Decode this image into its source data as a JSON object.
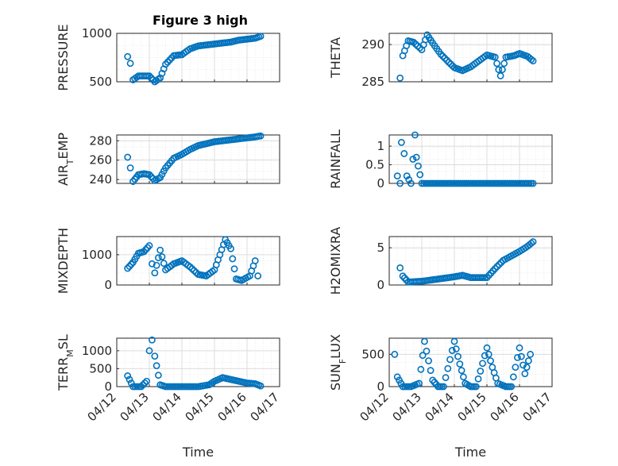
{
  "figure_title": "Figure 3 high",
  "marker_color": "#0072BD",
  "chart_data": [
    {
      "type": "scatter",
      "title": "Figure 3 high",
      "ylabel": "PRESSURE",
      "xlabel": "",
      "ylim": [
        500,
        1000
      ],
      "yticks": [
        "1000",
        "500"
      ],
      "grid": true,
      "x": [
        "04/12 08:00",
        "04/12 10:00",
        "04/12 12:00",
        "04/12 16:00",
        "04/12 20:00",
        "04/13 00:00",
        "04/13 04:00",
        "04/13 08:00",
        "04/13 12:00",
        "04/13 18:00",
        "04/14 00:00",
        "04/14 06:00",
        "04/14 12:00",
        "04/14 18:00",
        "04/15 00:00",
        "04/15 06:00",
        "04/15 12:00",
        "04/15 18:00",
        "04/16 00:00",
        "04/16 06:00",
        "04/16 10:00"
      ],
      "values": [
        760,
        690,
        520,
        560,
        560,
        560,
        500,
        540,
        680,
        770,
        780,
        840,
        870,
        880,
        890,
        900,
        910,
        930,
        940,
        950,
        970
      ]
    },
    {
      "type": "scatter",
      "title": "",
      "ylabel": "THETA",
      "xlabel": "",
      "ylim": [
        285,
        291.5
      ],
      "yticks": [
        "290",
        "285"
      ],
      "grid": true,
      "x": [
        "04/12 08:00",
        "04/12 10:00",
        "04/12 14:00",
        "04/12 18:00",
        "04/13 00:00",
        "04/13 04:00",
        "04/13 08:00",
        "04/13 14:00",
        "04/13 20:00",
        "04/14 00:00",
        "04/14 06:00",
        "04/14 12:00",
        "04/14 18:00",
        "04/15 00:00",
        "04/15 06:00",
        "04/15 10:00",
        "04/15 14:00",
        "04/15 20:00",
        "04/16 00:00",
        "04/16 06:00",
        "04/16 10:00"
      ],
      "values": [
        285.5,
        288.5,
        290.5,
        290.3,
        289.3,
        291.3,
        290.2,
        288.7,
        287.6,
        286.9,
        286.5,
        287.0,
        287.8,
        288.6,
        288.3,
        285.8,
        288.3,
        288.5,
        288.8,
        288.4,
        287.8
      ]
    },
    {
      "type": "scatter",
      "title": "",
      "ylabel": "AIR_TEMP",
      "xlabel": "",
      "ylim": [
        236,
        286
      ],
      "yticks": [
        "280",
        "260",
        "240"
      ],
      "grid": true,
      "x": [
        "04/12 08:00",
        "04/12 10:00",
        "04/12 12:00",
        "04/12 16:00",
        "04/12 20:00",
        "04/13 00:00",
        "04/13 04:00",
        "04/13 08:00",
        "04/13 12:00",
        "04/13 18:00",
        "04/14 00:00",
        "04/14 06:00",
        "04/14 12:00",
        "04/14 18:00",
        "04/15 00:00",
        "04/15 06:00",
        "04/15 12:00",
        "04/15 18:00",
        "04/16 00:00",
        "04/16 06:00",
        "04/16 10:00"
      ],
      "values": [
        263,
        252,
        238,
        245,
        246,
        245,
        239,
        242,
        252,
        262,
        266,
        271,
        275,
        277,
        279,
        280,
        281,
        282,
        283,
        284,
        285
      ]
    },
    {
      "type": "scatter",
      "title": "",
      "ylabel": "RAINFALL",
      "xlabel": "",
      "ylim": [
        0,
        1.3
      ],
      "yticks": [
        "1",
        "0.5",
        "0"
      ],
      "grid": true,
      "x": [
        "04/12 06:00",
        "04/12 08:00",
        "04/12 09:00",
        "04/12 11:00",
        "04/12 13:00",
        "04/12 16:00",
        "04/12 19:00",
        "04/12 20:00",
        "04/13 00:00",
        "04/13 12:00",
        "04/14 00:00",
        "04/14 12:00",
        "04/15 00:00",
        "04/15 12:00",
        "04/16 00:00",
        "04/16 10:00"
      ],
      "values": [
        0.2,
        0.0,
        1.1,
        0.8,
        0.2,
        0.0,
        1.3,
        0.7,
        0.0,
        0.0,
        0.0,
        0.0,
        0.0,
        0.0,
        0.0,
        0.0
      ]
    },
    {
      "type": "scatter",
      "title": "",
      "ylabel": "MIXDEPTH",
      "xlabel": "",
      "ylim": [
        0,
        1600
      ],
      "yticks": [
        "1000",
        "0"
      ],
      "grid": true,
      "x": [
        "04/12 08:00",
        "04/12 12:00",
        "04/12 16:00",
        "04/12 20:00",
        "04/13 00:00",
        "04/13 02:00",
        "04/13 04:00",
        "04/13 08:00",
        "04/13 12:00",
        "04/13 18:00",
        "04/14 00:00",
        "04/14 06:00",
        "04/14 12:00",
        "04/14 18:00",
        "04/15 00:00",
        "04/15 04:00",
        "04/15 08:00",
        "04/15 12:00",
        "04/15 16:00",
        "04/15 20:00",
        "04/16 02:00",
        "04/16 06:00",
        "04/16 08:00"
      ],
      "values": [
        550,
        750,
        1050,
        1100,
        1300,
        700,
        400,
        1150,
        500,
        700,
        800,
        600,
        350,
        300,
        500,
        1000,
        1500,
        1200,
        200,
        150,
        300,
        800,
        300
      ]
    },
    {
      "type": "scatter",
      "title": "",
      "ylabel": "H2OMIXRA",
      "xlabel": "",
      "ylim": [
        0,
        6.5
      ],
      "yticks": [
        "5",
        "0"
      ],
      "grid": true,
      "x": [
        "04/12 08:00",
        "04/12 10:00",
        "04/12 14:00",
        "04/13 00:00",
        "04/13 12:00",
        "04/14 00:00",
        "04/14 06:00",
        "04/14 12:00",
        "04/15 00:00",
        "04/15 06:00",
        "04/15 12:00",
        "04/15 18:00",
        "04/16 00:00",
        "04/16 06:00",
        "04/16 10:00"
      ],
      "values": [
        2.3,
        1.2,
        0.4,
        0.5,
        0.8,
        1.1,
        1.3,
        1.0,
        1.0,
        2.2,
        3.3,
        3.9,
        4.5,
        5.2,
        5.8
      ]
    },
    {
      "type": "scatter",
      "title": "",
      "ylabel": "TERR_MSL",
      "xlabel": "Time",
      "ylim": [
        0,
        1350
      ],
      "yticks": [
        "1000",
        "500",
        "0"
      ],
      "grid": true,
      "xticks": [
        "04/12",
        "04/13",
        "04/14",
        "04/15",
        "04/16",
        "04/17"
      ],
      "x": [
        "04/12 08:00",
        "04/12 12:00",
        "04/12 18:00",
        "04/12 22:00",
        "04/13 00:00",
        "04/13 02:00",
        "04/13 04:00",
        "04/13 08:00",
        "04/13 12:00",
        "04/14 00:00",
        "04/14 12:00",
        "04/14 20:00",
        "04/15 00:00",
        "04/15 06:00",
        "04/15 12:00",
        "04/15 18:00",
        "04/16 00:00",
        "04/16 06:00",
        "04/16 10:00"
      ],
      "values": [
        300,
        0,
        0,
        150,
        1000,
        1300,
        850,
        50,
        0,
        0,
        0,
        50,
        150,
        250,
        200,
        150,
        100,
        80,
        20
      ]
    },
    {
      "type": "scatter",
      "title": "",
      "ylabel": "SUN_FLUX",
      "xlabel": "Time",
      "ylim": [
        0,
        750
      ],
      "yticks": [
        "500",
        "0"
      ],
      "grid": true,
      "xticks": [
        "04/12",
        "04/13",
        "04/14",
        "04/15",
        "04/16",
        "04/17"
      ],
      "x": [
        "04/12 04:00",
        "04/12 06:00",
        "04/12 10:00",
        "04/12 16:00",
        "04/12 22:00",
        "04/13 02:00",
        "04/13 05:00",
        "04/13 08:00",
        "04/13 12:00",
        "04/13 16:00",
        "04/14 00:00",
        "04/14 04:00",
        "04/14 08:00",
        "04/14 12:00",
        "04/14 16:00",
        "04/15 00:00",
        "04/15 04:00",
        "04/15 08:00",
        "04/15 14:00",
        "04/15 18:00",
        "04/16 00:00",
        "04/16 04:00",
        "04/16 08:00"
      ],
      "values": [
        500,
        150,
        0,
        0,
        50,
        700,
        400,
        100,
        0,
        0,
        700,
        350,
        50,
        0,
        0,
        600,
        300,
        50,
        0,
        0,
        600,
        200,
        500
      ]
    }
  ]
}
